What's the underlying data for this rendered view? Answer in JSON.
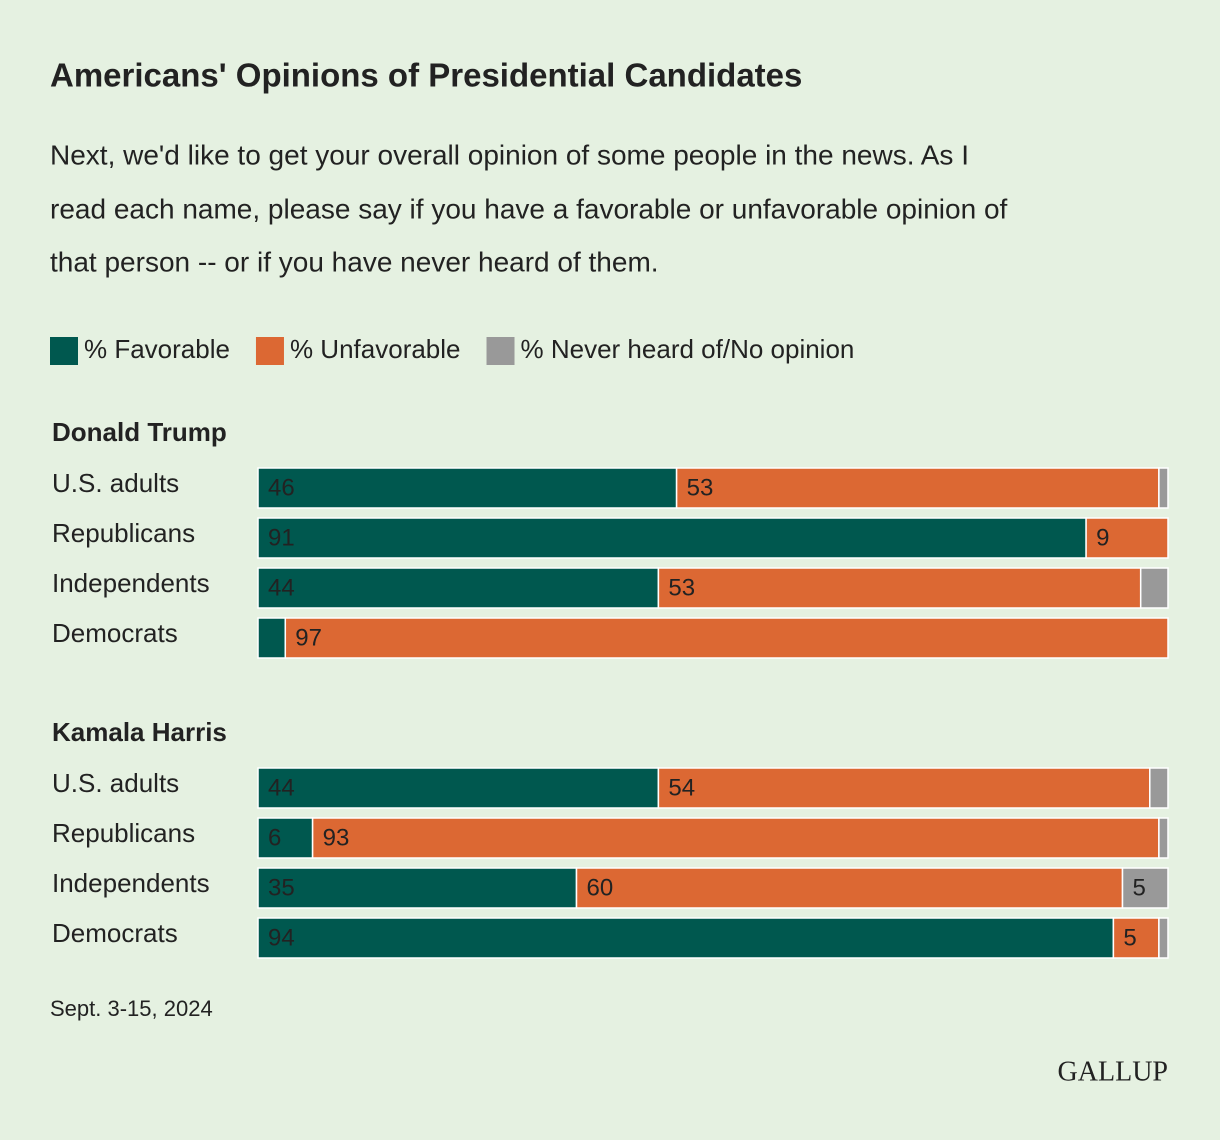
{
  "title": "Americans' Opinions of Presidential Candidates",
  "subtitle": [
    "Next, we'd like to get your overall opinion of some people in the news. As I",
    "read each name, please say if you have a favorable or unfavorable opinion of",
    "that person -- or if you have never heard of them."
  ],
  "note": "Sept. 3-15, 2024",
  "logo": "GALLUP",
  "chart_data": [
    {
      "type": "stacked-bar",
      "orientation": "horizontal",
      "title": "Donald Trump",
      "categories": [
        "U.S. adults",
        "Republicans",
        "Independents",
        "Democrats"
      ],
      "xlim": [
        0,
        100
      ],
      "series": [
        {
          "name": "% Favorable",
          "color": "#00584f",
          "values": [
            46,
            91,
            44,
            3
          ],
          "value_labels": [
            "46",
            "91",
            "44",
            null
          ]
        },
        {
          "name": "% Unfavorable",
          "color": "#dc6833",
          "values": [
            53,
            9,
            53,
            97
          ],
          "value_labels": [
            "53",
            "9",
            "53",
            "97"
          ]
        },
        {
          "name": "% Never heard of/No opinion",
          "color": "#999999",
          "values": [
            1,
            0,
            3,
            0
          ],
          "value_labels": [
            null,
            null,
            null,
            null
          ]
        }
      ]
    },
    {
      "type": "stacked-bar",
      "orientation": "horizontal",
      "title": "Kamala Harris",
      "categories": [
        "U.S. adults",
        "Republicans",
        "Independents",
        "Democrats"
      ],
      "xlim": [
        0,
        100
      ],
      "series": [
        {
          "name": "% Favorable",
          "color": "#00584f",
          "values": [
            44,
            6,
            35,
            94
          ],
          "value_labels": [
            "44",
            "6",
            "35",
            "94"
          ]
        },
        {
          "name": "% Unfavorable",
          "color": "#dc6833",
          "values": [
            54,
            93,
            60,
            5
          ],
          "value_labels": [
            "54",
            "93",
            "60",
            "5"
          ]
        },
        {
          "name": "% Never heard of/No opinion",
          "color": "#999999",
          "values": [
            2,
            1,
            5,
            1
          ],
          "value_labels": [
            null,
            null,
            "5",
            null
          ]
        }
      ]
    }
  ]
}
